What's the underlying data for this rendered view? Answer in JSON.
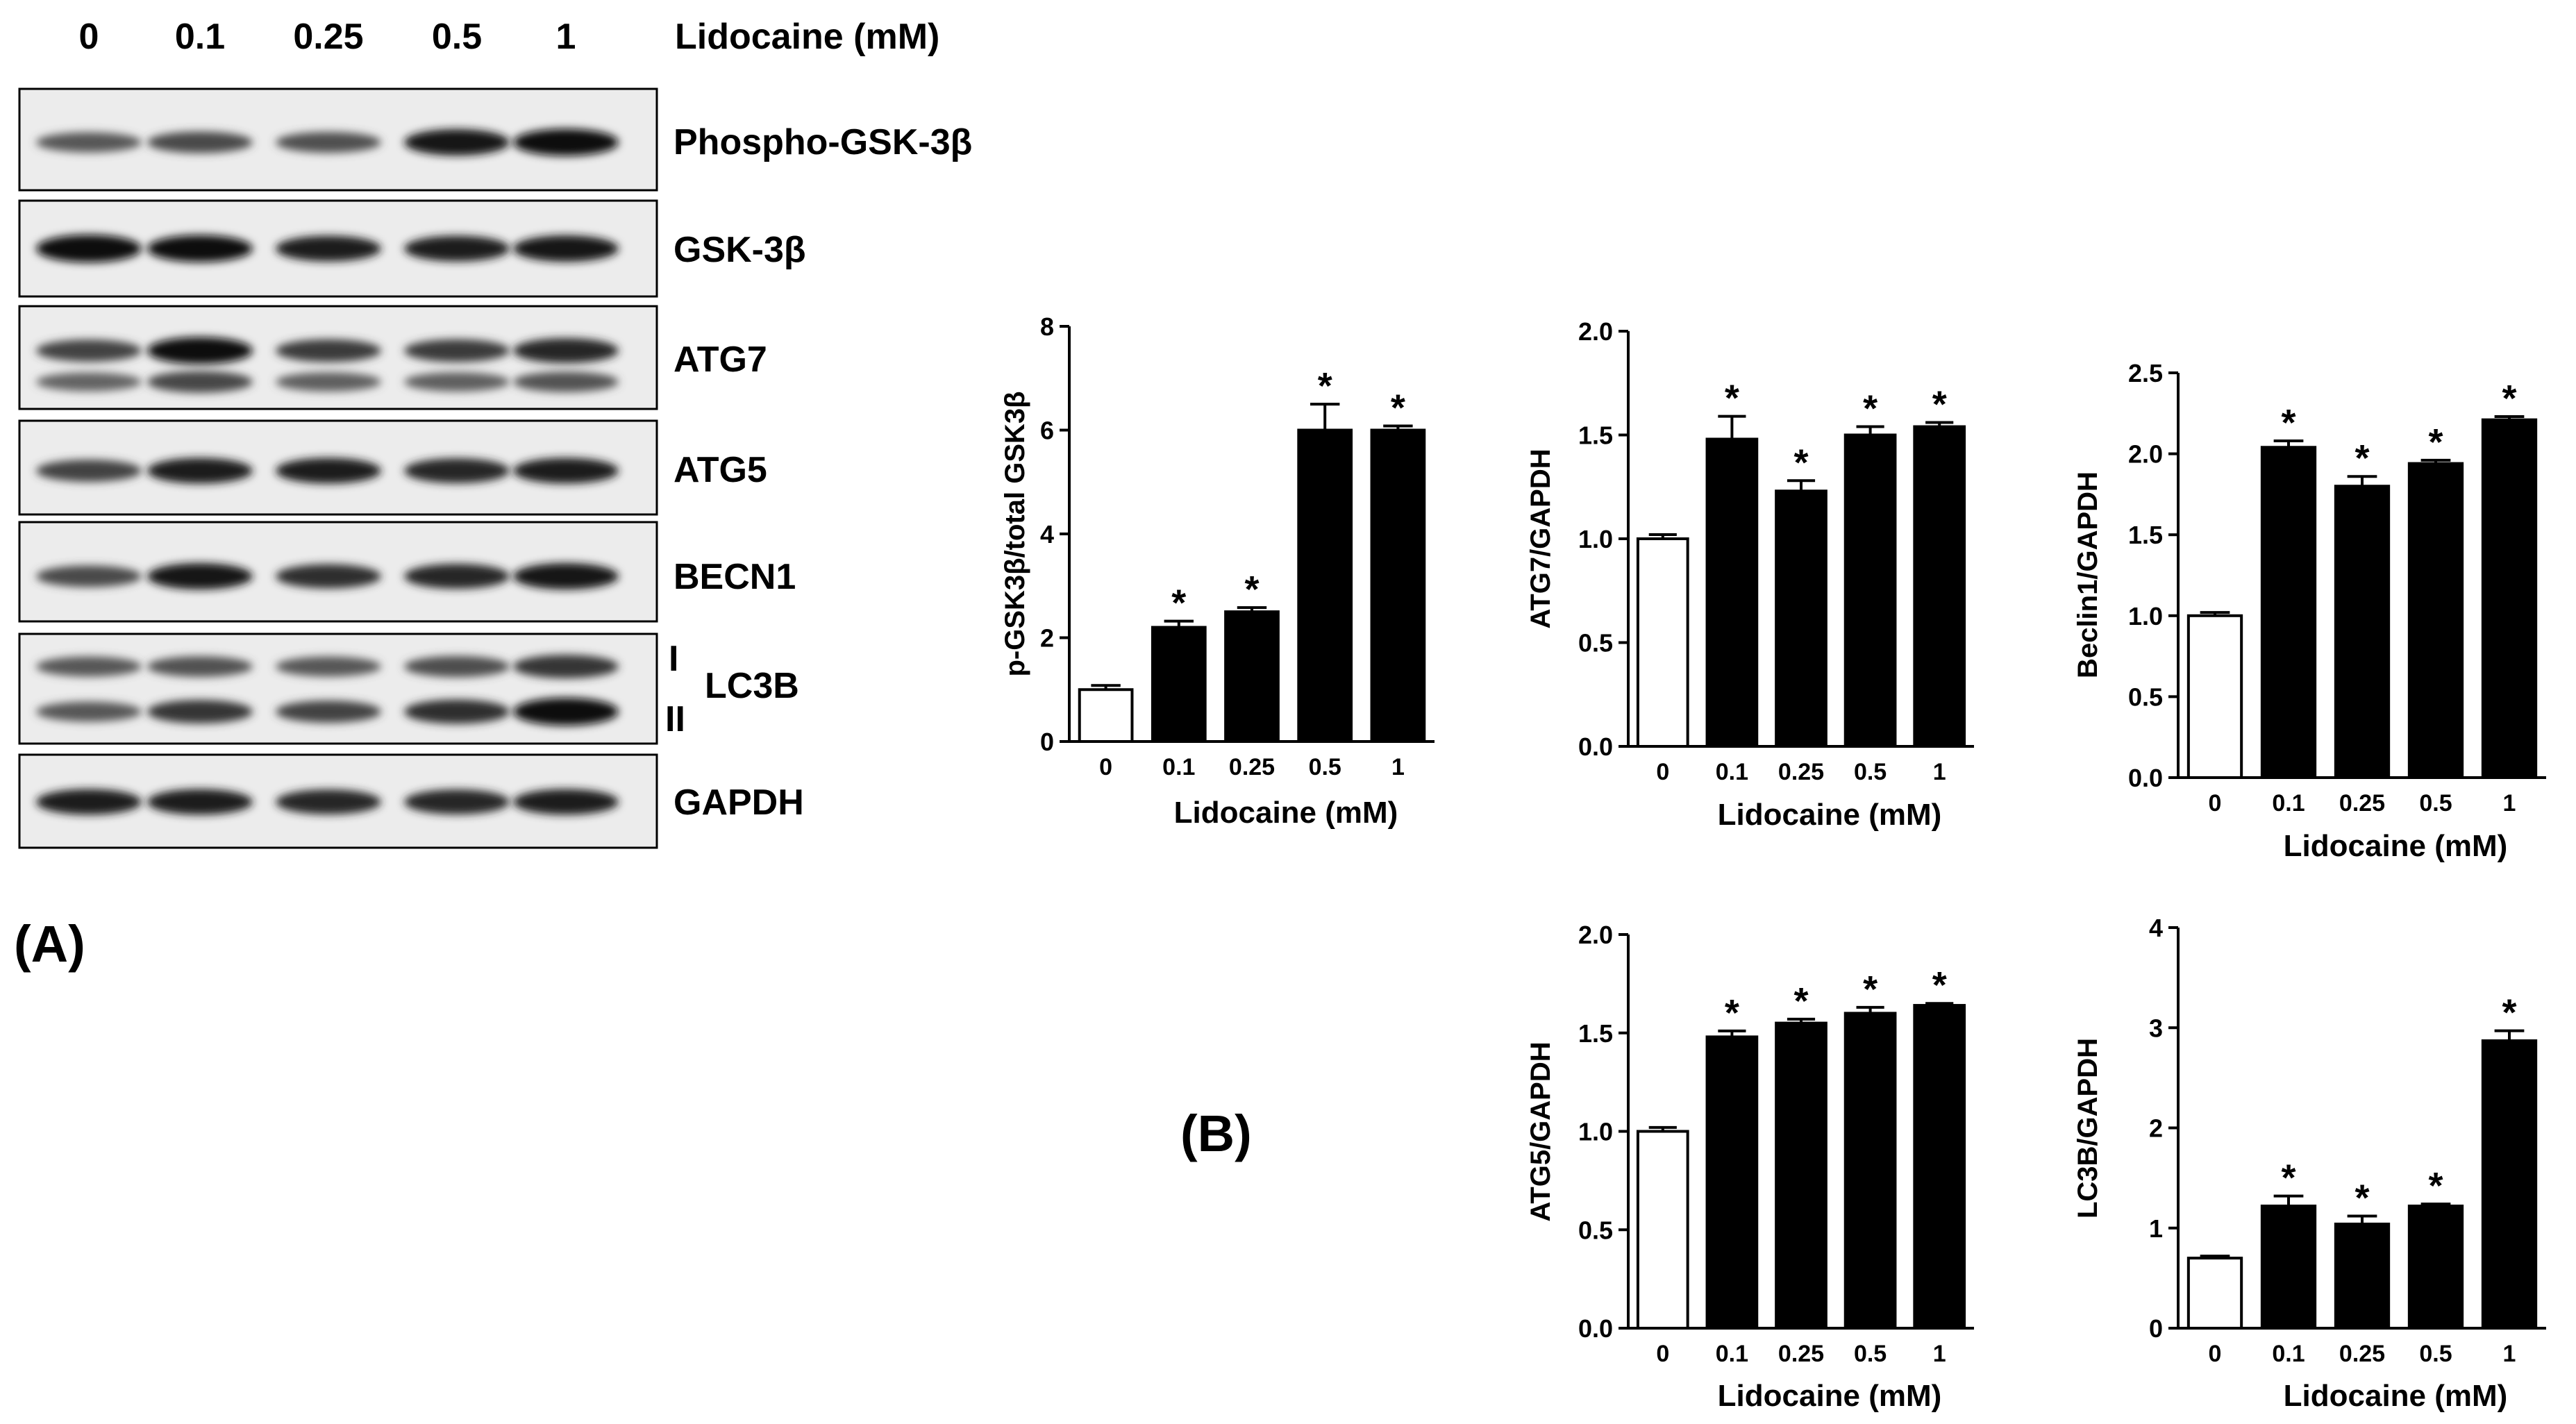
{
  "panel_labels": {
    "a": "(A)",
    "b": "(B)"
  },
  "western_blot": {
    "lane_labels": [
      "0",
      "0.1",
      "0.25",
      "0.5",
      "1"
    ],
    "treatment_label": "Lidocaine (mM)",
    "rows": [
      {
        "id": "pgsk3b",
        "label": "Phospho-GSK-3β",
        "intensity": [
          0.45,
          0.55,
          0.5,
          0.9,
          0.95
        ],
        "double": false
      },
      {
        "id": "gsk3b",
        "label": "GSK-3β",
        "intensity": [
          1.0,
          0.95,
          0.85,
          0.85,
          0.9
        ],
        "double": false
      },
      {
        "id": "atg7",
        "label": "ATG7",
        "intensity": [
          0.6,
          0.95,
          0.65,
          0.65,
          0.8
        ],
        "double": true
      },
      {
        "id": "atg5",
        "label": "ATG5",
        "intensity": [
          0.6,
          0.85,
          0.85,
          0.8,
          0.85
        ],
        "double": false
      },
      {
        "id": "becn1",
        "label": "BECN1",
        "intensity": [
          0.55,
          0.9,
          0.75,
          0.8,
          0.9
        ],
        "double": false
      },
      {
        "id": "lc3b",
        "label": "LC3B",
        "sub_label_top": "I",
        "sub_label_bottom": "II",
        "intensity": [
          0.45,
          0.7,
          0.6,
          0.75,
          1.0
        ],
        "double": true
      },
      {
        "id": "gapdh",
        "label": "GAPDH",
        "intensity": [
          0.85,
          0.85,
          0.8,
          0.8,
          0.85
        ],
        "double": false
      }
    ]
  },
  "chart_data": [
    {
      "id": "pgsk",
      "type": "bar",
      "title": "",
      "xlabel": "Lidocaine (mM)",
      "ylabel": "p-GSK3β/total GSK3β",
      "categories": [
        "0",
        "0.1",
        "0.25",
        "0.5",
        "1"
      ],
      "values": [
        1.0,
        2.2,
        2.5,
        6.0,
        6.0
      ],
      "errors": [
        0.08,
        0.12,
        0.08,
        0.5,
        0.08
      ],
      "significant": [
        false,
        true,
        true,
        true,
        true
      ],
      "annotation": "*",
      "ylim": [
        0,
        8
      ],
      "yticks": [
        "0",
        "2",
        "4",
        "6",
        "8"
      ]
    },
    {
      "id": "atg7",
      "type": "bar",
      "title": "",
      "xlabel": "Lidocaine (mM)",
      "ylabel": "ATG7/GAPDH",
      "categories": [
        "0",
        "0.1",
        "0.25",
        "0.5",
        "1"
      ],
      "values": [
        1.0,
        1.48,
        1.23,
        1.5,
        1.54
      ],
      "errors": [
        0.02,
        0.11,
        0.05,
        0.04,
        0.02
      ],
      "significant": [
        false,
        true,
        true,
        true,
        true
      ],
      "annotation": "*",
      "ylim": [
        0,
        2
      ],
      "yticks": [
        "0.0",
        "0.5",
        "1.0",
        "1.5",
        "2.0"
      ]
    },
    {
      "id": "beclin",
      "type": "bar",
      "title": "",
      "xlabel": "Lidocaine (mM)",
      "ylabel": "Beclin1/GAPDH",
      "categories": [
        "0",
        "0.1",
        "0.25",
        "0.5",
        "1"
      ],
      "values": [
        1.0,
        2.04,
        1.8,
        1.94,
        2.21
      ],
      "errors": [
        0.02,
        0.04,
        0.06,
        0.02,
        0.02
      ],
      "significant": [
        false,
        true,
        true,
        true,
        true
      ],
      "annotation": "*",
      "ylim": [
        0,
        2.5
      ],
      "yticks": [
        "0.0",
        "0.5",
        "1.0",
        "1.5",
        "2.0",
        "2.5"
      ]
    },
    {
      "id": "atg5",
      "type": "bar",
      "title": "",
      "xlabel": "Lidocaine (mM)",
      "ylabel": "ATG5/GAPDH",
      "categories": [
        "0",
        "0.1",
        "0.25",
        "0.5",
        "1"
      ],
      "values": [
        1.0,
        1.48,
        1.55,
        1.6,
        1.64
      ],
      "errors": [
        0.02,
        0.03,
        0.02,
        0.03,
        0.01
      ],
      "significant": [
        false,
        true,
        true,
        true,
        true
      ],
      "annotation": "*",
      "ylim": [
        0,
        2
      ],
      "yticks": [
        "0.0",
        "0.5",
        "1.0",
        "1.5",
        "2.0"
      ]
    },
    {
      "id": "lc3b",
      "type": "bar",
      "title": "",
      "xlabel": "Lidocaine (mM)",
      "ylabel": "LC3B/GAPDH",
      "categories": [
        "0",
        "0.1",
        "0.25",
        "0.5",
        "1"
      ],
      "values": [
        0.7,
        1.22,
        1.04,
        1.22,
        2.87
      ],
      "errors": [
        0.02,
        0.1,
        0.08,
        0.02,
        0.1
      ],
      "significant": [
        false,
        true,
        true,
        true,
        true
      ],
      "annotation": "*",
      "ylim": [
        0,
        4
      ],
      "yticks": [
        "0",
        "1",
        "2",
        "3",
        "4"
      ]
    }
  ]
}
